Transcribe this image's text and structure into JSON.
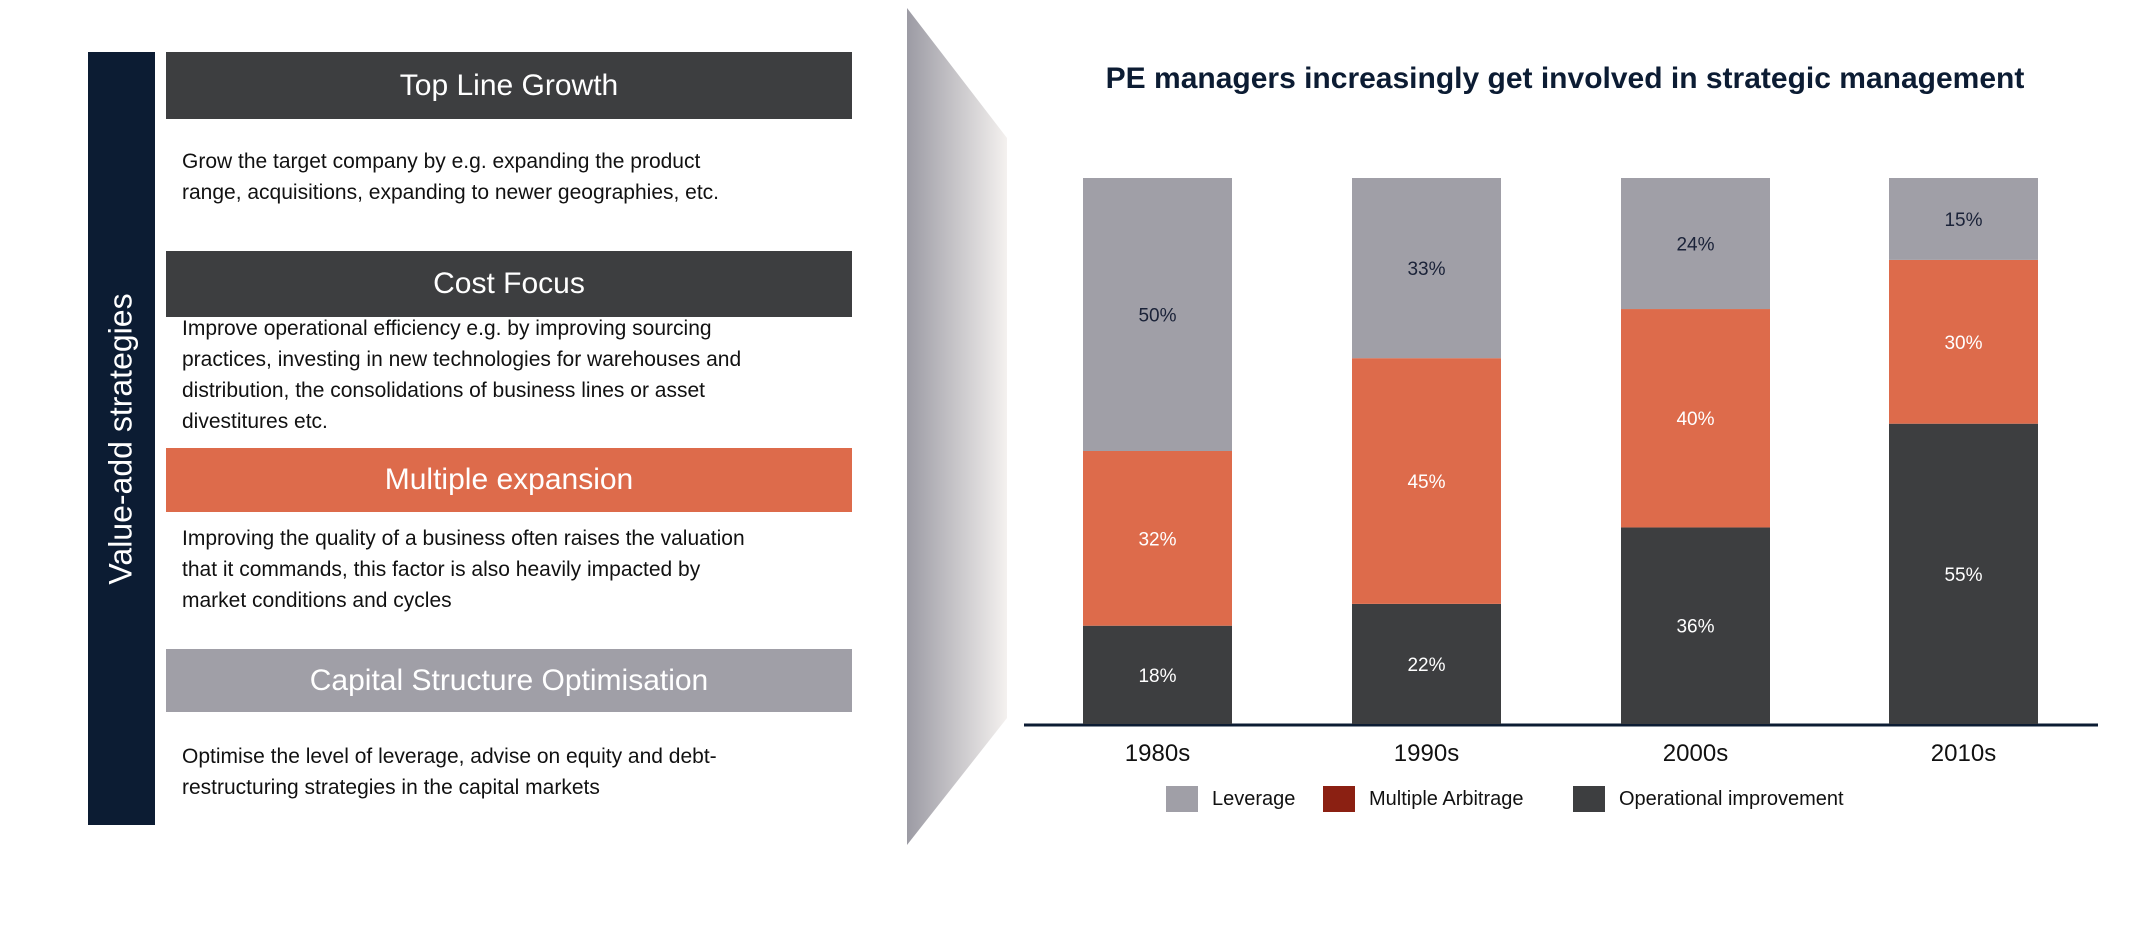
{
  "left_panel": {
    "side_label": "Value-add strategies",
    "sections": [
      {
        "title": "Top Line Growth",
        "color": "#3d3e40",
        "lines": [
          "Grow the target company by e.g. expanding the product",
          "range, acquisitions, expanding to newer geographies, etc."
        ]
      },
      {
        "title": "Cost Focus",
        "color": "#3d3e40",
        "lines": [
          "Improve operational efficiency e.g. by improving sourcing",
          "practices, investing in new technologies for warehouses and",
          "distribution, the consolidations of business lines or asset",
          "divestitures etc."
        ]
      },
      {
        "title": "Multiple expansion",
        "color": "#dd6b4b",
        "lines": [
          "Improving the quality of a business often raises the valuation",
          "that it commands, this factor is  also heavily impacted by",
          "market conditions and cycles"
        ]
      },
      {
        "title": "Capital Structure Optimisation",
        "color": "#a09fa7",
        "lines": [
          "Optimise the level of leverage, advise on equity and debt-",
          "restructuring strategies in the capital markets"
        ]
      }
    ]
  },
  "chart_data": {
    "type": "bar",
    "stacked": true,
    "title": "PE managers increasingly get involved in strategic management",
    "categories": [
      "1980s",
      "1990s",
      "2000s",
      "2010s"
    ],
    "ylim": [
      0,
      100
    ],
    "grid": false,
    "legend_position": "bottom",
    "series": [
      {
        "name": "Operational improvement",
        "values": [
          18,
          22,
          36,
          55
        ],
        "color": "#3d3e40",
        "legend_color": "#3d3e40",
        "labels": [
          "18%",
          "22%",
          "36%",
          "55%"
        ]
      },
      {
        "name": "Multiple Arbitrage",
        "values": [
          32,
          45,
          40,
          30
        ],
        "color": "#dd6b4b",
        "legend_color": "#8b2012",
        "labels": [
          "32%",
          "45%",
          "40%",
          "30%"
        ]
      },
      {
        "name": "Leverage",
        "values": [
          50,
          33,
          24,
          15
        ],
        "color": "#a09fa7",
        "legend_color": "#a09fa7",
        "labels": [
          "50%",
          "33%",
          "24%",
          "15%"
        ]
      }
    ]
  }
}
